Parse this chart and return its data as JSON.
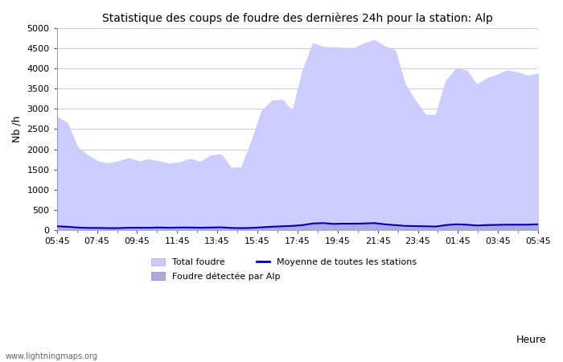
{
  "title": "Statistique des coups de foudre des dernières 24h pour la station: Alp",
  "xlabel": "Heure",
  "ylabel": "Nb /h",
  "watermark": "www.lightningmaps.org",
  "xlim_labels": [
    "05:45",
    "07:45",
    "09:45",
    "11:45",
    "13:45",
    "15:45",
    "17:45",
    "19:45",
    "21:45",
    "23:45",
    "01:45",
    "03:45",
    "05:45"
  ],
  "ylim": [
    0,
    5000
  ],
  "yticks": [
    0,
    500,
    1000,
    1500,
    2000,
    2500,
    3000,
    3500,
    4000,
    4500,
    5000
  ],
  "total_foudre_color": "#ccccff",
  "detected_color": "#aaaadd",
  "mean_line_color": "#0000bb",
  "background_color": "#ffffff",
  "grid_color": "#cccccc",
  "spine_color": "#999999",
  "tick_color": "#555555",
  "legend": {
    "total_foudre_label": "Total foudre",
    "detected_label": "Foudre détectée par Alp",
    "mean_label": "Moyenne de toutes les stations"
  },
  "total_foudre": [
    2800,
    2650,
    2050,
    1850,
    1700,
    1650,
    1700,
    1780,
    1700,
    1750,
    1700,
    1640,
    1680,
    1760,
    1690,
    1840,
    1880,
    1540,
    1550,
    2200,
    2950,
    3200,
    3220,
    2950,
    3950,
    4620,
    4530,
    4520,
    4510,
    4500,
    4620,
    4700,
    4550,
    4450,
    3600,
    3200,
    2850,
    2850,
    3700,
    4000,
    3950,
    3600,
    3750,
    3850,
    3950,
    3900,
    3820,
    3870
  ],
  "detected": [
    100,
    90,
    70,
    60,
    60,
    55,
    55,
    65,
    65,
    65,
    70,
    65,
    70,
    70,
    65,
    70,
    75,
    60,
    55,
    60,
    75,
    90,
    100,
    110,
    130,
    170,
    180,
    160,
    165,
    165,
    170,
    180,
    150,
    130,
    110,
    105,
    100,
    95,
    130,
    150,
    140,
    120,
    130,
    135,
    140,
    140,
    140,
    150
  ],
  "mean_line": [
    95,
    85,
    65,
    55,
    55,
    50,
    50,
    60,
    60,
    60,
    65,
    60,
    65,
    65,
    60,
    65,
    70,
    55,
    50,
    55,
    70,
    85,
    95,
    105,
    125,
    165,
    175,
    155,
    160,
    160,
    165,
    175,
    145,
    125,
    105,
    100,
    95,
    90,
    125,
    145,
    135,
    115,
    125,
    130,
    135,
    135,
    135,
    145
  ]
}
